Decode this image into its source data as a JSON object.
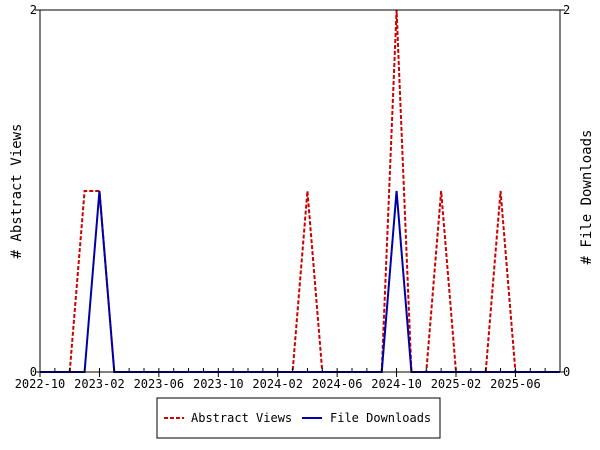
{
  "chart_data": {
    "type": "line",
    "title": "",
    "xlabel": "",
    "ylabel_left": "# Abstract Views",
    "ylabel_right": "# File Downloads",
    "x_tick_labels": [
      "2022-10",
      "2023-02",
      "2023-06",
      "2023-10",
      "2024-02",
      "2024-06",
      "2024-10",
      "2025-02",
      "2025-06"
    ],
    "y_tick_labels_left": [
      "0",
      "2"
    ],
    "y_tick_labels_right": [
      "0",
      "2"
    ],
    "xlim": [
      "2022-10-01",
      "2025-09-01"
    ],
    "ylim_left": [
      0,
      2
    ],
    "ylim_right": [
      0,
      2
    ],
    "grid": false,
    "legend_position": "bottom-center",
    "series": [
      {
        "name": "Abstract Views",
        "axis": "left",
        "color": "#cc0000",
        "dash": "dashed",
        "points": [
          [
            "2022-10-01",
            0
          ],
          [
            "2022-12-01",
            0
          ],
          [
            "2023-01-01",
            1
          ],
          [
            "2023-02-01",
            1
          ],
          [
            "2023-03-01",
            0
          ],
          [
            "2024-03-01",
            0
          ],
          [
            "2024-04-01",
            1
          ],
          [
            "2024-05-01",
            0
          ],
          [
            "2024-09-01",
            0
          ],
          [
            "2024-10-01",
            2
          ],
          [
            "2024-11-01",
            0
          ],
          [
            "2024-12-01",
            0
          ],
          [
            "2025-01-01",
            1
          ],
          [
            "2025-02-01",
            0
          ],
          [
            "2025-04-01",
            0
          ],
          [
            "2025-05-01",
            1
          ],
          [
            "2025-06-01",
            0
          ],
          [
            "2025-09-01",
            0
          ]
        ]
      },
      {
        "name": "File Downloads",
        "axis": "right",
        "color": "#0000aa",
        "dash": "solid",
        "points": [
          [
            "2022-10-01",
            0
          ],
          [
            "2023-01-01",
            0
          ],
          [
            "2023-02-01",
            1
          ],
          [
            "2023-03-01",
            0
          ],
          [
            "2024-09-01",
            0
          ],
          [
            "2024-10-01",
            1
          ],
          [
            "2024-11-01",
            0
          ],
          [
            "2025-09-01",
            0
          ]
        ]
      }
    ]
  }
}
